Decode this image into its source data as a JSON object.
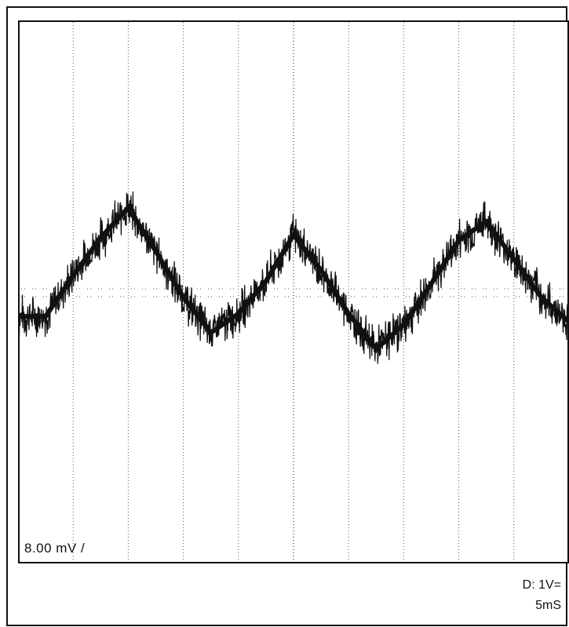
{
  "chart_data": {
    "type": "line",
    "xlabel": "",
    "ylabel": "",
    "divisions": {
      "x": 10,
      "y": 10
    },
    "grid": {
      "vertical": true,
      "horizontal": false,
      "style": "dotted"
    },
    "xlim": [
      0,
      10
    ],
    "ylim": [
      -5,
      5
    ],
    "series": [
      {
        "style": "noisy-triangle",
        "x": [
          0.0,
          0.5,
          1.0,
          1.5,
          2.0,
          2.5,
          3.0,
          3.5,
          4.0,
          4.5,
          5.0,
          5.5,
          6.0,
          6.5,
          7.0,
          7.5,
          8.0,
          8.5,
          9.0,
          9.5,
          10.0
        ],
        "y": [
          -0.45,
          -0.45,
          0.3,
          1.0,
          1.55,
          0.75,
          -0.1,
          -0.75,
          -0.4,
          0.2,
          1.05,
          0.4,
          -0.4,
          -1.05,
          -0.6,
          0.15,
          0.95,
          1.3,
          0.6,
          -0.1,
          -0.55
        ],
        "noise_amplitude": 0.35,
        "color": "#111111"
      }
    ],
    "reference_trace": {
      "level": 0.0,
      "style": "dotted"
    },
    "annotations": {
      "scale": "8.00  mV  /",
      "channel": "D:  1V=",
      "timebase": "5mS"
    }
  }
}
